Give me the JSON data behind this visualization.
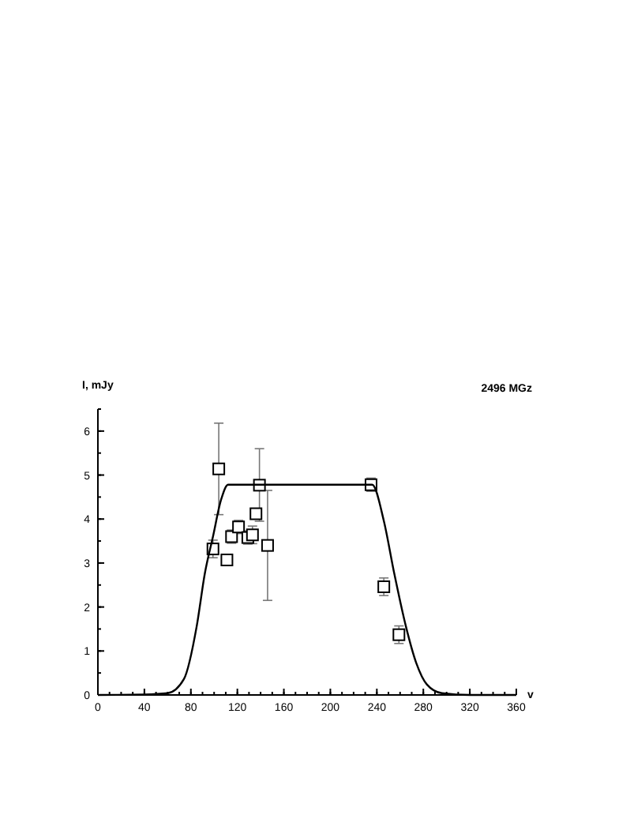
{
  "chart_data": {
    "type": "scatter",
    "title": "2496 MGz",
    "xlabel": "v",
    "ylabel": "I, mJy",
    "xlim": [
      0,
      360
    ],
    "ylim": [
      0,
      6.5
    ],
    "xticks": [
      0,
      40,
      80,
      120,
      160,
      200,
      240,
      280,
      320,
      360
    ],
    "yticks": [
      0,
      1,
      2,
      3,
      4,
      5,
      6
    ],
    "grid": false,
    "series": [
      {
        "marker": "square",
        "color": "#000000",
        "x": [
          99,
          104,
          111,
          115,
          121,
          129,
          133,
          136,
          139,
          146,
          235,
          246,
          259
        ],
        "values": [
          3.32,
          5.14,
          3.07,
          3.6,
          3.82,
          3.58,
          3.64,
          4.12,
          4.77,
          3.4,
          4.78,
          2.46,
          1.37
        ],
        "errors": [
          0.2,
          [
            4.1,
            6.18
          ],
          0.05,
          0.15,
          0.15,
          0.15,
          0.2,
          0.08,
          [
            3.95,
            5.6
          ],
          [
            2.15,
            4.65
          ],
          0.15,
          0.2,
          0.2
        ]
      },
      {
        "type": "line",
        "line_style": "solid",
        "color": "#000000",
        "x": [
          0,
          40,
          60,
          74,
          85,
          92,
          99,
          106,
          112,
          236,
          246,
          255,
          265,
          274,
          283,
          296,
          320,
          360
        ],
        "values": [
          0,
          0.01,
          0.04,
          0.36,
          1.56,
          2.76,
          3.6,
          4.44,
          4.78,
          4.78,
          3.96,
          2.76,
          1.56,
          0.72,
          0.24,
          0.04,
          0,
          0
        ]
      }
    ]
  }
}
